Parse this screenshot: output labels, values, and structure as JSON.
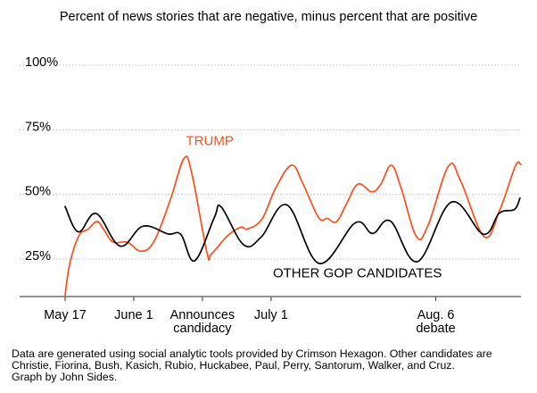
{
  "chart_data": {
    "type": "line",
    "title": "Percent of news stories that are negative, minus percent that are positive",
    "xlabel": "",
    "ylabel": "",
    "x_unit": "days since May 17",
    "xlim": [
      0,
      100
    ],
    "ylim": [
      10.5,
      100
    ],
    "grid": true,
    "y_ticks": [
      {
        "value": 100,
        "label": "100%"
      },
      {
        "value": 75,
        "label": "75%"
      },
      {
        "value": 50,
        "label": "50%"
      },
      {
        "value": 25,
        "label": "25%"
      }
    ],
    "x_ticks": [
      {
        "day": 0,
        "lines": [
          "May 17"
        ]
      },
      {
        "day": 15,
        "lines": [
          "June 1"
        ]
      },
      {
        "day": 30,
        "lines": [
          "Announces",
          "candidacy"
        ]
      },
      {
        "day": 45,
        "lines": [
          "July 1"
        ]
      },
      {
        "day": 81,
        "lines": [
          "Aug. 6",
          "debate"
        ]
      }
    ],
    "series": [
      {
        "name": "TRUMP",
        "color": "#ff4d1a",
        "x": [
          0,
          1,
          3,
          5,
          7,
          8.6,
          10.5,
          13.6,
          16.6,
          19.5,
          23,
          26,
          27.7,
          31,
          32,
          35.5,
          38.4,
          39.8,
          43,
          46,
          49.5,
          52,
          55.4,
          57.3,
          59.3,
          61.4,
          64,
          67,
          69,
          71.3,
          73.5,
          76.8,
          79.3,
          83.8,
          86.5,
          91.6,
          95,
          98.4,
          99.6
        ],
        "values": [
          11,
          23,
          34,
          36.5,
          39.5,
          36,
          31.5,
          31.5,
          28,
          32,
          48,
          64,
          58,
          27.5,
          27,
          34,
          37.3,
          36.6,
          40.4,
          52.4,
          61.3,
          54,
          41,
          40.7,
          39.4,
          46,
          54,
          51,
          54,
          61.3,
          52,
          33.6,
          38,
          61,
          55,
          33.6,
          44,
          61,
          61.6
        ]
      },
      {
        "name": "OTHER GOP CANDIDATES",
        "color": "#000000",
        "x": [
          0,
          2.9,
          6.8,
          12,
          17,
          22.5,
          25.3,
          28.3,
          32.6,
          34.1,
          39,
          42.9,
          48.5,
          55.5,
          63.4,
          67.2,
          71.1,
          77,
          84.4,
          91.4,
          94.9,
          98.2,
          99.4
        ],
        "values": [
          45.3,
          35.5,
          42.6,
          30,
          37.7,
          34.7,
          34.5,
          24.3,
          41,
          45.2,
          30.5,
          33.6,
          45.9,
          23.3,
          39,
          34.9,
          39.7,
          24,
          47,
          34.6,
          42.8,
          44.2,
          48.6
        ]
      }
    ],
    "annotations": [
      {
        "text": "TRUMP",
        "series": "TRUMP",
        "near_day": 27,
        "near_value": 69
      },
      {
        "text": "OTHER GOP CANDIDATES",
        "series": "OTHER GOP CANDIDATES",
        "near_day": 46,
        "near_value": 18
      }
    ]
  },
  "footnote": {
    "lines": [
      "Data are generated using social analytic tools provided by Crimson Hexagon. Other candidates are",
      "Christie, Fiorina, Bush, Kasich, Rubio, Huckabee, Paul, Perry, Santorum, Walker, and Cruz.",
      "Graph by John Sides."
    ]
  }
}
